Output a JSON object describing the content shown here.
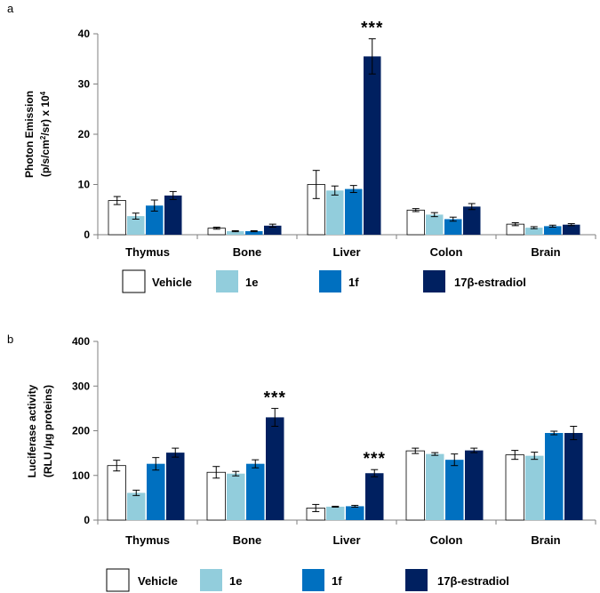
{
  "chart_data": [
    {
      "type": "bar",
      "panel_label": "a",
      "ylabel_line1": "Photon Emission",
      "ylabel_line2_prefix": "(p/s/cm",
      "ylabel_line2_sup1": "2",
      "ylabel_line2_mid": "/sr) x 10",
      "ylabel_line2_sup2": "4",
      "ylim": [
        0,
        40
      ],
      "yticks": [
        "0",
        "10",
        "20",
        "30",
        "40"
      ],
      "yticks_values": [
        0,
        10,
        20,
        30,
        40
      ],
      "categories": [
        "Thymus",
        "Bone",
        "Liver",
        "Colon",
        "Brain"
      ],
      "series": [
        {
          "name": "Vehicle",
          "color": "#ffffff",
          "values": [
            6.8,
            1.3,
            10.0,
            4.9,
            2.1
          ],
          "errors": [
            0.8,
            0.2,
            2.8,
            0.3,
            0.3
          ]
        },
        {
          "name": "1e",
          "color": "#92cddc",
          "values": [
            3.7,
            0.7,
            8.8,
            4.0,
            1.4
          ],
          "errors": [
            0.6,
            0.1,
            0.9,
            0.4,
            0.2
          ]
        },
        {
          "name": "1f",
          "color": "#0070c0",
          "values": [
            5.8,
            0.7,
            9.1,
            3.1,
            1.7
          ],
          "errors": [
            1.1,
            0.1,
            0.7,
            0.4,
            0.2
          ]
        },
        {
          "name": "17β-estradiol",
          "color": "#002060",
          "values": [
            7.8,
            1.8,
            35.5,
            5.6,
            2.0
          ],
          "errors": [
            0.8,
            0.3,
            3.5,
            0.6,
            0.2
          ]
        }
      ],
      "annotations": [
        {
          "category": "Liver",
          "series": "17β-estradiol",
          "text": "***"
        }
      ]
    },
    {
      "type": "bar",
      "panel_label": "b",
      "ylabel_line1": "Luciferase activity",
      "ylabel_line2": "(RLU /µg proteins)",
      "ylim": [
        0,
        400
      ],
      "yticks": [
        "0",
        "100",
        "200",
        "300",
        "400"
      ],
      "yticks_values": [
        0,
        100,
        200,
        300,
        400
      ],
      "categories": [
        "Thymus",
        "Bone",
        "Liver",
        "Colon",
        "Brain"
      ],
      "series": [
        {
          "name": "Vehicle",
          "color": "#ffffff",
          "values": [
            122,
            107,
            27,
            155,
            146
          ],
          "errors": [
            12,
            13,
            8,
            6,
            10
          ]
        },
        {
          "name": "1e",
          "color": "#92cddc",
          "values": [
            61,
            104,
            30,
            148,
            144
          ],
          "errors": [
            6,
            5,
            1,
            3,
            8
          ]
        },
        {
          "name": "1f",
          "color": "#0070c0",
          "values": [
            126,
            126,
            31,
            135,
            195
          ],
          "errors": [
            14,
            9,
            2,
            13,
            4
          ]
        },
        {
          "name": "17β-estradiol",
          "color": "#002060",
          "values": [
            151,
            230,
            105,
            156,
            195
          ],
          "errors": [
            10,
            20,
            8,
            5,
            15
          ]
        }
      ],
      "annotations": [
        {
          "category": "Bone",
          "series": "17β-estradiol",
          "text": "***"
        },
        {
          "category": "Liver",
          "series": "17β-estradiol",
          "text": "***"
        }
      ]
    }
  ]
}
